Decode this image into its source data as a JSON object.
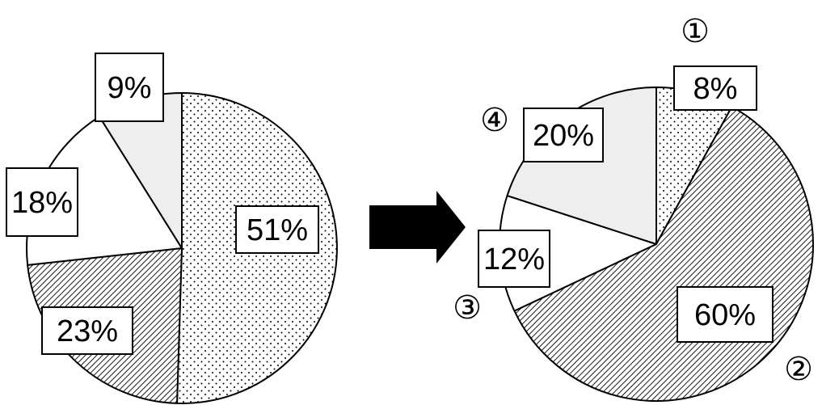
{
  "colors": {
    "stroke": "#000000",
    "light_gray": "#eeeeee",
    "white": "#ffffff",
    "arrow": "#000000"
  },
  "patterns": {
    "dotted": "dots",
    "hatched": "diagonal-lines",
    "plain_white": "white",
    "plain_gray": "light-gray"
  },
  "chart_data": [
    {
      "type": "pie",
      "title": "",
      "start": "12 o'clock",
      "direction": "clockwise",
      "slices": [
        {
          "label": "51%",
          "value": 51,
          "fill": "dotted"
        },
        {
          "label": "23%",
          "value": 23,
          "fill": "hatched"
        },
        {
          "label": "18%",
          "value": 18,
          "fill": "plain_white"
        },
        {
          "label": "9%",
          "value": 9,
          "fill": "plain_gray"
        }
      ]
    },
    {
      "type": "pie",
      "title": "",
      "start": "12 o'clock",
      "direction": "clockwise",
      "slices": [
        {
          "label": "8%",
          "value": 8,
          "fill": "dotted",
          "marker": "①"
        },
        {
          "label": "60%",
          "value": 60,
          "fill": "hatched",
          "marker": "②"
        },
        {
          "label": "12%",
          "value": 12,
          "fill": "plain_white",
          "marker": "③"
        },
        {
          "label": "20%",
          "value": 20,
          "fill": "plain_gray",
          "marker": "④"
        }
      ]
    }
  ],
  "arrow": {
    "direction": "right"
  }
}
